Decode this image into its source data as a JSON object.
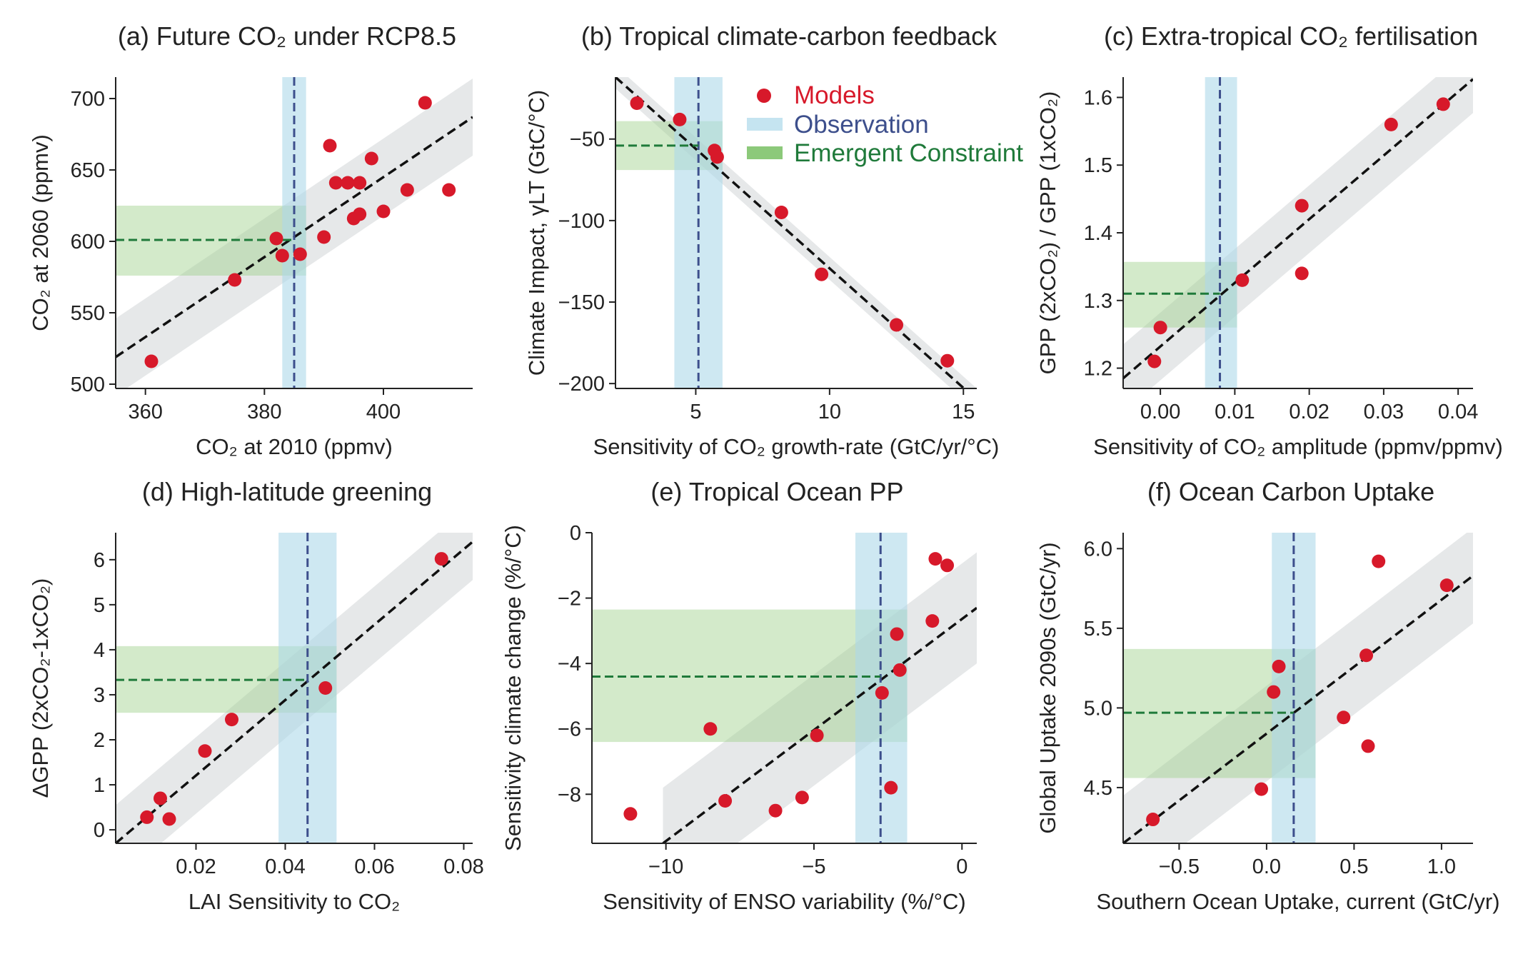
{
  "legend": {
    "models": "Models",
    "observation": "Observation",
    "emergent": "Emergent Constraint",
    "colors": {
      "models": "#d7192a",
      "observation": "#3d4f8c",
      "emergent": "#1f7a3a"
    }
  },
  "chart_data": [
    {
      "type": "scatter",
      "panel": "a",
      "title": "(a) Future CO₂ under RCP8.5",
      "xlabel": "CO₂ at 2010 (ppmv)",
      "ylabel": "CO₂ at 2060 (ppmv)",
      "xlim": [
        355,
        415
      ],
      "ylim": [
        497,
        715
      ],
      "xticks": [
        360,
        380,
        400
      ],
      "yticks": [
        500,
        550,
        600,
        650,
        700
      ],
      "points": [
        [
          361,
          516
        ],
        [
          375,
          573
        ],
        [
          382,
          602
        ],
        [
          383,
          590
        ],
        [
          386,
          591
        ],
        [
          390,
          603
        ],
        [
          391,
          667
        ],
        [
          392,
          641
        ],
        [
          394,
          641
        ],
        [
          395,
          616
        ],
        [
          396,
          641
        ],
        [
          396,
          619
        ],
        [
          398,
          658
        ],
        [
          400,
          621
        ],
        [
          404,
          636
        ],
        [
          407,
          697
        ],
        [
          411,
          636
        ]
      ],
      "fit": {
        "x": [
          355,
          415
        ],
        "y": [
          519,
          687
        ]
      },
      "fit_band_halfwidth": 27,
      "observation": {
        "value": 385,
        "range": [
          383,
          387
        ]
      },
      "constraint": {
        "value": 601,
        "range": [
          576,
          625
        ]
      }
    },
    {
      "type": "scatter",
      "panel": "b",
      "title": "(b) Tropical climate-carbon feedback",
      "xlabel": "Sensitivity of CO₂ growth-rate (GtC/yr/°C)",
      "ylabel": "Climate Impact, γLT (GtC/°C)",
      "xlim": [
        2,
        15.5
      ],
      "ylim": [
        -203,
        -12
      ],
      "xticks": [
        5,
        10,
        15
      ],
      "yticks": [
        -50,
        -100,
        -150,
        -200
      ],
      "points": [
        [
          2.8,
          -28
        ],
        [
          4.4,
          -38
        ],
        [
          5.7,
          -57
        ],
        [
          5.8,
          -61
        ],
        [
          8.2,
          -95
        ],
        [
          9.7,
          -133
        ],
        [
          12.5,
          -164
        ],
        [
          14.4,
          -186
        ]
      ],
      "fit": {
        "x": [
          2,
          15.5
        ],
        "y": [
          -12,
          -210
        ]
      },
      "fit_band_halfwidth": 7,
      "observation": {
        "value": 5.1,
        "range": [
          4.2,
          6.0
        ]
      },
      "constraint": {
        "value": -54,
        "range": [
          -69,
          -39
        ]
      }
    },
    {
      "type": "scatter",
      "panel": "c",
      "title": "(c) Extra-tropical CO₂ fertilisation",
      "xlabel": "Sensitivity of CO₂ amplitude (ppmv/ppmv)",
      "ylabel": "GPP (2xCO₂) / GPP (1xCO₂)",
      "xlim": [
        -0.005,
        0.042
      ],
      "ylim": [
        1.17,
        1.63
      ],
      "xticks": [
        0.0,
        0.01,
        0.02,
        0.03,
        0.04
      ],
      "yticks": [
        1.2,
        1.3,
        1.4,
        1.5,
        1.6
      ],
      "points": [
        [
          -0.0008,
          1.21
        ],
        [
          0.0,
          1.26
        ],
        [
          0.011,
          1.33
        ],
        [
          0.019,
          1.44
        ],
        [
          0.019,
          1.34
        ],
        [
          0.031,
          1.56
        ],
        [
          0.038,
          1.59
        ]
      ],
      "fit": {
        "x": [
          -0.005,
          0.042
        ],
        "y": [
          1.185,
          1.627
        ]
      },
      "fit_band_halfwidth": 0.05,
      "observation": {
        "value": 0.008,
        "range": [
          0.006,
          0.0103
        ]
      },
      "constraint": {
        "value": 1.31,
        "range": [
          1.26,
          1.357
        ]
      }
    },
    {
      "type": "scatter",
      "panel": "d",
      "title": "(d) High-latitude greening",
      "xlabel": "LAI Sensitivity to CO₂",
      "ylabel": "ΔGPP (2xCO₂-1xCO₂)",
      "xlim": [
        0.002,
        0.082
      ],
      "ylim": [
        -0.3,
        6.6
      ],
      "xticks": [
        0.02,
        0.04,
        0.06,
        0.08
      ],
      "yticks": [
        0,
        1,
        2,
        3,
        4,
        5,
        6
      ],
      "points": [
        [
          0.009,
          0.28
        ],
        [
          0.012,
          0.7
        ],
        [
          0.014,
          0.24
        ],
        [
          0.022,
          1.75
        ],
        [
          0.028,
          2.45
        ],
        [
          0.049,
          3.15
        ],
        [
          0.075,
          6.02
        ]
      ],
      "fit": {
        "x": [
          0.002,
          0.082
        ],
        "y": [
          -0.3,
          6.4
        ]
      },
      "fit_band_halfwidth": 0.85,
      "observation": {
        "value": 0.045,
        "range": [
          0.0385,
          0.0515
        ]
      },
      "constraint": {
        "value": 3.33,
        "range": [
          2.6,
          4.08
        ]
      }
    },
    {
      "type": "scatter",
      "panel": "e",
      "title": "(e) Tropical Ocean PP",
      "xlabel": "Sensitivity of ENSO variability (%/°C)",
      "ylabel": "Sensitivity climate change (%/°C)",
      "xlim": [
        -12.5,
        0.5
      ],
      "ylim": [
        -9.5,
        0
      ],
      "xticks": [
        -10,
        -5,
        0
      ],
      "yticks": [
        0,
        -2,
        -4,
        -6,
        -8
      ],
      "points": [
        [
          -11.2,
          -8.6
        ],
        [
          -8.5,
          -6.0
        ],
        [
          -8.0,
          -8.2
        ],
        [
          -6.3,
          -8.5
        ],
        [
          -5.4,
          -8.1
        ],
        [
          -4.9,
          -6.2
        ],
        [
          -2.7,
          -4.9
        ],
        [
          -2.4,
          -7.8
        ],
        [
          -2.2,
          -3.1
        ],
        [
          -2.1,
          -4.2
        ],
        [
          -1.0,
          -2.7
        ],
        [
          -0.9,
          -0.8
        ],
        [
          -0.5,
          -1.0
        ]
      ],
      "fit": {
        "x": [
          -10.1,
          0.5
        ],
        "y": [
          -9.5,
          -2.3
        ]
      },
      "fit_band_halfwidth": 1.7,
      "observation": {
        "value": -2.75,
        "range": [
          -3.6,
          -1.85
        ]
      },
      "constraint": {
        "value": -4.4,
        "range": [
          -6.4,
          -2.35
        ]
      }
    },
    {
      "type": "scatter",
      "panel": "f",
      "title": "(f) Ocean Carbon Uptake",
      "xlabel": "Southern Ocean Uptake, current (GtC/yr)",
      "ylabel": "Global Uptake 2090s (GtC/yr)",
      "xlim": [
        -0.82,
        1.18
      ],
      "ylim": [
        4.15,
        6.1
      ],
      "xticks": [
        -0.5,
        0.0,
        0.5,
        1.0
      ],
      "yticks": [
        4.5,
        5.0,
        5.5,
        6.0
      ],
      "points": [
        [
          -0.65,
          4.3
        ],
        [
          -0.03,
          4.49
        ],
        [
          0.04,
          5.1
        ],
        [
          0.07,
          5.26
        ],
        [
          0.44,
          4.94
        ],
        [
          0.57,
          5.33
        ],
        [
          0.58,
          4.76
        ],
        [
          0.64,
          5.92
        ],
        [
          1.03,
          5.77
        ]
      ],
      "fit": {
        "x": [
          -0.82,
          1.18
        ],
        "y": [
          4.15,
          5.83
        ]
      },
      "fit_band_halfwidth": 0.3,
      "observation": {
        "value": 0.155,
        "range": [
          0.03,
          0.28
        ]
      },
      "constraint": {
        "value": 4.97,
        "range": [
          4.56,
          5.37
        ]
      }
    }
  ]
}
